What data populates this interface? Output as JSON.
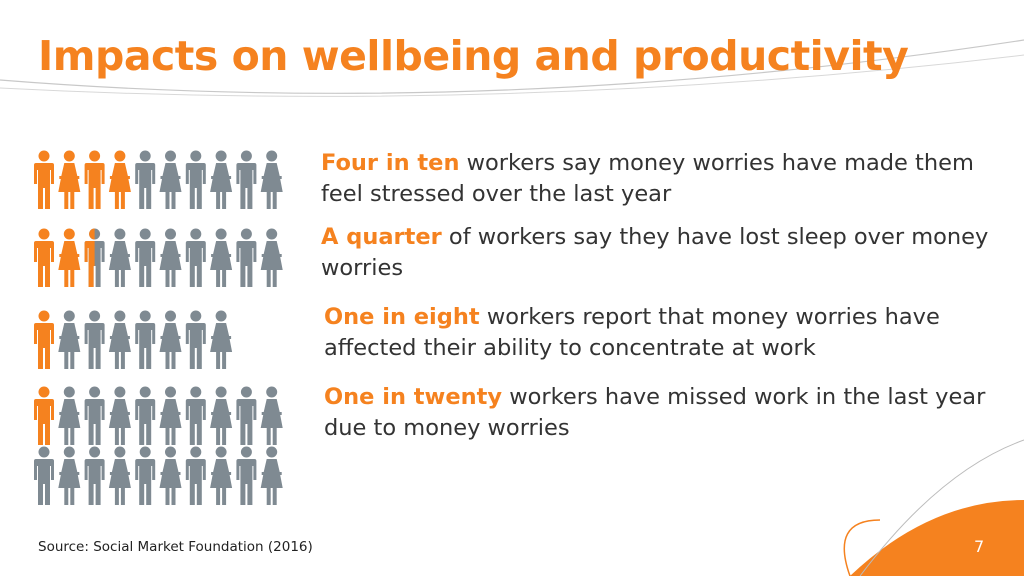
{
  "header": {
    "title": "Impacts on wellbeing and productivity"
  },
  "items": [
    {
      "lead": "Four in ten",
      "text": "workers say money worries have made them feel stressed over the last year"
    },
    {
      "lead": "A quarter",
      "text": "of workers say they have lost sleep over money worries"
    },
    {
      "lead": "One in eight",
      "text": "workers report that money worries have affected their ability to concentrate at work"
    },
    {
      "lead": "One in twenty",
      "text": "workers have missed work in the last year due to money worries"
    }
  ],
  "footer": {
    "source": "Source: Social Market Foundation (2016)",
    "page_number": "7"
  }
}
